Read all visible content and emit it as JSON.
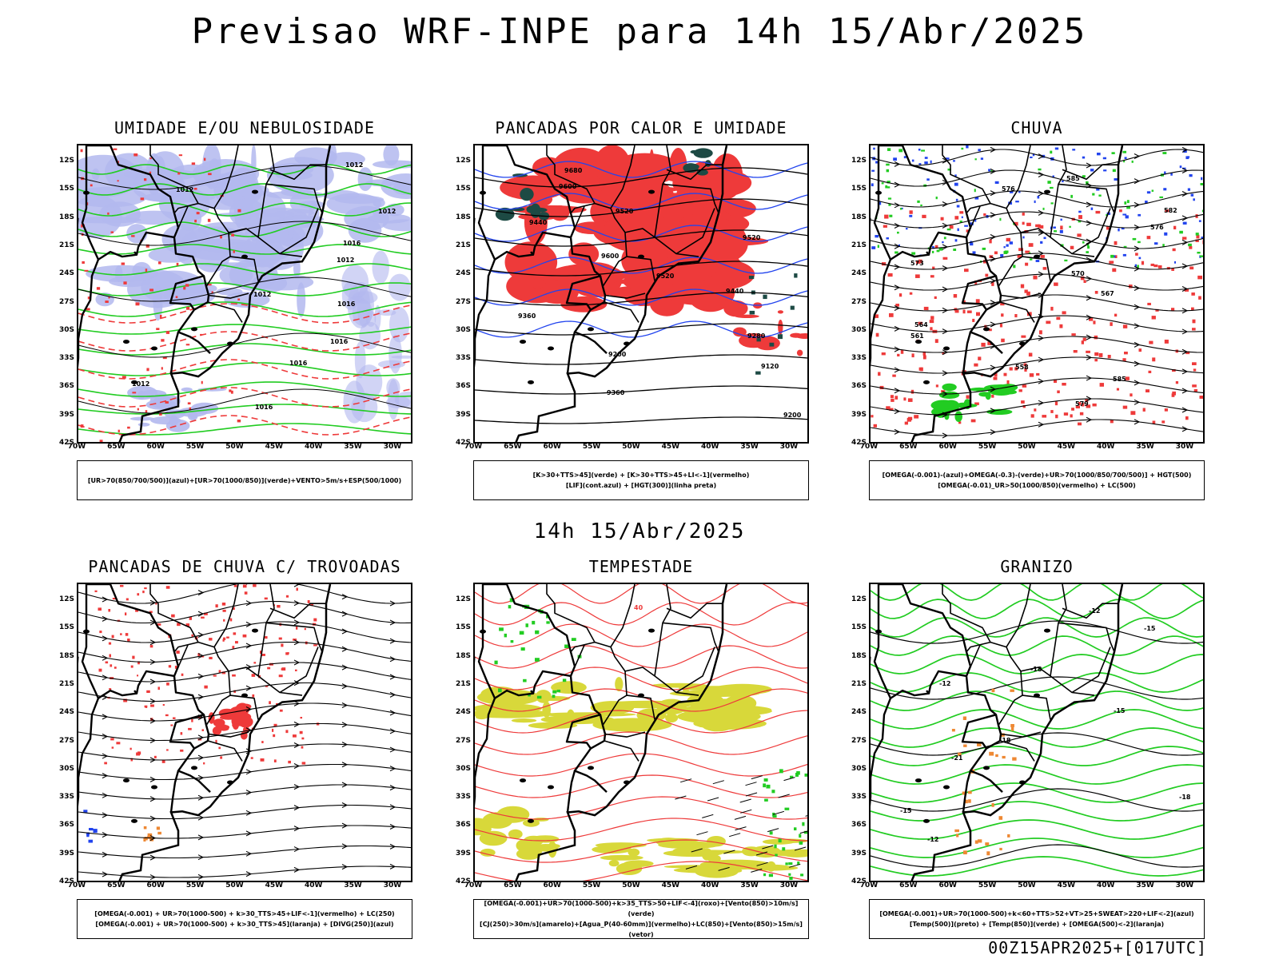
{
  "title": "Previsao WRF-INPE  para 14h 15/Abr/2025",
  "mid_title": "14h 15/Abr/2025",
  "footer": "00Z15APR2025+[017UTC]",
  "lat_labels": [
    "12S",
    "15S",
    "18S",
    "21S",
    "24S",
    "27S",
    "30S",
    "33S",
    "36S",
    "39S",
    "42S"
  ],
  "lon_labels": [
    "70W",
    "65W",
    "60W",
    "55W",
    "50W",
    "45W",
    "40W",
    "35W",
    "30W"
  ],
  "colors": {
    "blue_fill": "#b3b8ee",
    "green_contour": "#22cc22",
    "red_fill": "#ee3a3a",
    "dark_teal": "#1d4a44",
    "yellow_fill": "#d8d83a",
    "blue_contour": "#2244ee",
    "orange": "#ee8833"
  },
  "panels": [
    {
      "title": "UMIDADE E/OU NEBULOSIDADE",
      "legend": [
        "[UR>70(850/700/500)](azul)+[UR>70(1000/850)](verde)+VENTO>5m/s+ESP(500/1000)"
      ],
      "contour_labels": [
        "1012",
        "1012",
        "1012",
        "1016",
        "1012",
        "1012",
        "1016",
        "1016",
        "1016",
        "1012",
        "1016"
      ]
    },
    {
      "title": "PANCADAS POR CALOR E UMIDADE",
      "legend": [
        "[K>30+TTS>45](verde) + [K>30+TTS>45+LI<-1](vermelho)",
        "[LIF](cont.azul) + [HGT(300)](linha preta)"
      ],
      "contour_labels": [
        "9680",
        "9600",
        "9520",
        "9440",
        "9520",
        "9600",
        "9520",
        "9440",
        "9360",
        "9280",
        "9200",
        "9120",
        "9360",
        "9200"
      ]
    },
    {
      "title": "CHUVA",
      "legend": [
        "[OMEGA(-0.001)-(azul)+OMEGA(-0.3)-(verde)+UR>70(1000/850/700/500)] + HGT(500)",
        "[OMEGA(-0.01)_UR>50(1000/850)(vermelho) + LC(500)"
      ],
      "contour_labels": [
        "585",
        "576",
        "582",
        "576",
        "573",
        "570",
        "567",
        "564",
        "561",
        "558",
        "585",
        "579"
      ]
    },
    {
      "title": "PANCADAS DE CHUVA C/ TROVOADAS",
      "legend": [
        "[OMEGA(-0.001) + UR>70(1000-500) + k>30_TTS>45+LIF<-1](vermelho) + LC(250)",
        "[OMEGA(-0.001) + UR>70(1000-500) + k>30_TTS>45](laranja) + [DIVG(250)](azul)"
      ],
      "contour_labels": []
    },
    {
      "title": "TEMPESTADE",
      "legend": [
        "[OMEGA(-0.001)+UR>70(1000-500)+k>35_TTS>50+LIF<-4](roxo)+[Vento(850)>10m/s](verde)",
        "[CJ(250)>30m/s](amarelo)+[Agua_P(40-60mm)](vermelho)+LC(850)+[Vento(850)>15m/s](vetor)"
      ],
      "contour_labels": [
        "40"
      ]
    },
    {
      "title": "GRANIZO",
      "legend": [
        "[OMEGA(-0.001)+UR>70(1000-500)+k<60+TTS>52+VT>25+SWEAT>220+LIF<-2](azul)",
        "[Temp(500)](preto) + [Temp(850)](verde) + [OMEGA(500)<-2](laranja)"
      ],
      "contour_labels": [
        "-12",
        "-15",
        "-18",
        "-12",
        "-15",
        "-18",
        "-21",
        "-18",
        "-15",
        "-12"
      ]
    }
  ]
}
